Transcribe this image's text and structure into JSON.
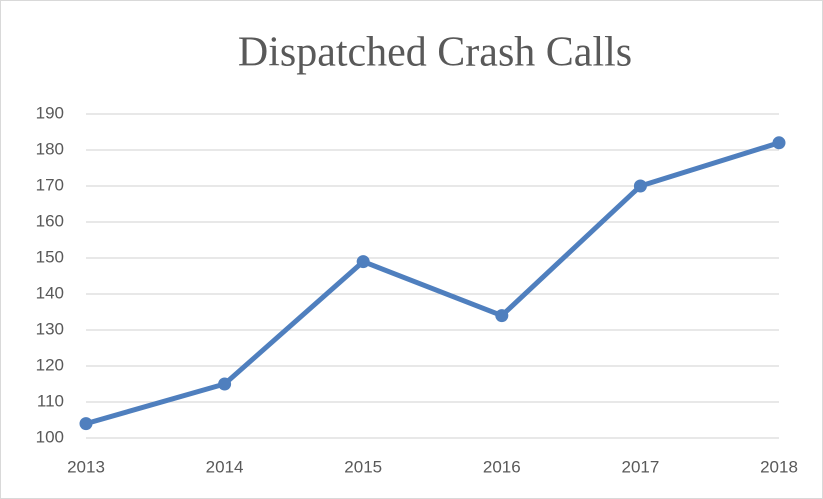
{
  "chart_data": {
    "type": "line",
    "title": "Dispatched Crash Calls",
    "categories": [
      "2013",
      "2014",
      "2015",
      "2016",
      "2017",
      "2018"
    ],
    "values": [
      104,
      115,
      149,
      134,
      170,
      182
    ],
    "color": "#4f7fbe",
    "ylim": [
      100,
      190
    ],
    "yticks": [
      100,
      110,
      120,
      130,
      140,
      150,
      160,
      170,
      180,
      190
    ],
    "grid": true
  }
}
